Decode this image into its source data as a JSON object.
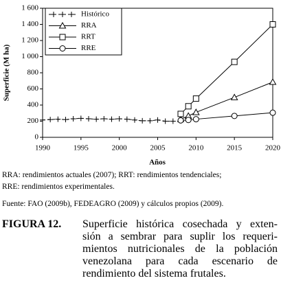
{
  "chart_data": {
    "type": "line",
    "xlabel": "Años",
    "ylabel": "Superficie (M ha)",
    "xlim": [
      1990,
      2020
    ],
    "xticks": [
      1990,
      1995,
      2000,
      2005,
      2010,
      2015,
      2020
    ],
    "ylim": [
      0,
      1600
    ],
    "yticks": [
      0,
      200,
      400,
      600,
      800,
      {
        "value": 1000,
        "label": "1 000"
      },
      {
        "value": 1200,
        "label": "1 200"
      },
      {
        "value": 1400,
        "label": "1 400"
      },
      {
        "value": 1600,
        "label": "1 600"
      }
    ],
    "grid": false,
    "legend": "upper left",
    "series": [
      {
        "name": "Histórico",
        "color": "#000000",
        "linestyle": "dashed",
        "marker": "plus",
        "x": [
          1990,
          1991,
          1992,
          1993,
          1994,
          1995,
          1996,
          1997,
          1998,
          1999,
          2000,
          2001,
          2002,
          2003,
          2004,
          2005,
          2006,
          2007
        ],
        "values": [
          215,
          220,
          225,
          220,
          230,
          235,
          230,
          225,
          230,
          225,
          230,
          225,
          215,
          205,
          205,
          215,
          200,
          200
        ]
      },
      {
        "name": "RRA",
        "color": "#000000",
        "linestyle": "solid",
        "marker": "triangle",
        "x": [
          2008,
          2009,
          2010,
          2015,
          2020
        ],
        "values": [
          225,
          265,
          310,
          495,
          685
        ]
      },
      {
        "name": "RRT",
        "color": "#000000",
        "linestyle": "solid",
        "marker": "square",
        "x": [
          2008,
          2009,
          2010,
          2015,
          2020
        ],
        "values": [
          290,
          385,
          480,
          935,
          1400
        ]
      },
      {
        "name": "RRE",
        "color": "#000000",
        "linestyle": "solid",
        "marker": "circle",
        "x": [
          2008,
          2009,
          2010,
          2015,
          2020
        ],
        "values": [
          210,
          215,
          225,
          265,
          305
        ]
      }
    ]
  },
  "notes": [
    "RRA: rendimientos actuales (2007); RRT: rendimientos tendenciales;",
    "RRE: rendimientos experimentales."
  ],
  "source": "Fuente: FAO (2009b), FEDEAGRO (2009) y cálculos propios (2009).",
  "figure_label": "FIGURA 12.",
  "caption_lines": [
    "Superficie histórica cosechada y exten-",
    "sión a sembrar para suplir los requeri-",
    "mientos nutricionales de la población",
    "venezolana para cada escenario de",
    "rendimiento del sistema frutales."
  ]
}
